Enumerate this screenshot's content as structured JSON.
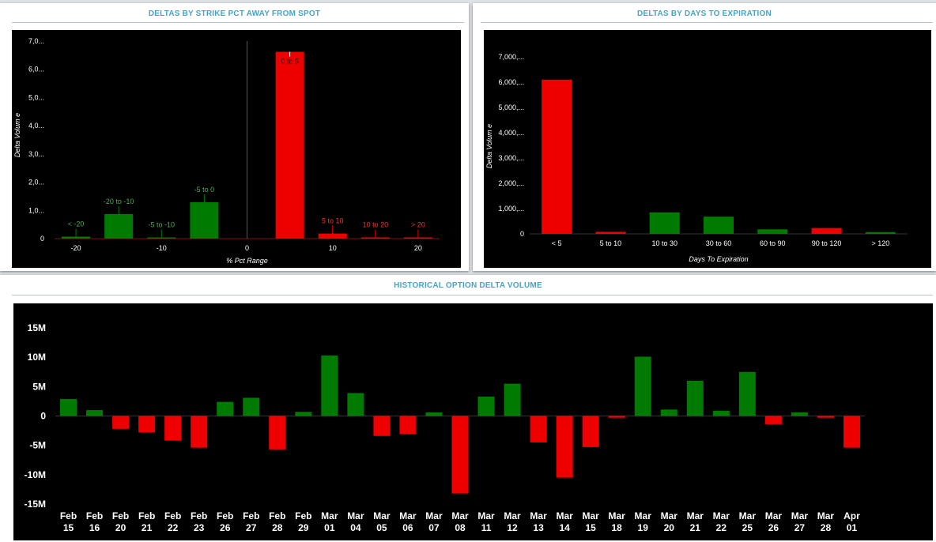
{
  "panels": {
    "strike": {
      "title": "DELTAS BY STRIKE PCT AWAY FROM SPOT"
    },
    "days": {
      "title": "DELTAS BY DAYS TO EXPIRATION"
    },
    "history": {
      "title": "HISTORICAL OPTION DELTA VOLUME"
    }
  },
  "colors": {
    "positive": "#007a00",
    "negative": "#ee0000",
    "label_green": "#4caf50",
    "label_red": "#ff3030",
    "background": "#000000"
  },
  "chart_data": [
    {
      "type": "bar",
      "xlabel": "% Pct Range",
      "ylabel": "Delta Volum e",
      "ylim": [
        0,
        7000
      ],
      "y_ticks": [
        0,
        1000,
        2000,
        3000,
        4000,
        5000,
        6000,
        7000
      ],
      "y_tick_labels": [
        "0",
        "1,0...",
        "2,0...",
        "3,0...",
        "4,0...",
        "5,0...",
        "6,0...",
        "7,0..."
      ],
      "xlim": [
        -22.5,
        22.5
      ],
      "x_ticks": [
        -20,
        -10,
        0,
        10,
        20
      ],
      "x_tick_labels": [
        "-20",
        "-10",
        "0",
        "10",
        "20"
      ],
      "bars": [
        {
          "label": "< -20",
          "x": -20,
          "value": 70,
          "sign": "positive"
        },
        {
          "label": "-20 to -10",
          "x": -15,
          "value": 870,
          "sign": "positive"
        },
        {
          "label": "-5 to -10",
          "x": -10,
          "value": 40,
          "sign": "positive"
        },
        {
          "label": "-5 to 0",
          "x": -5,
          "value": 1290,
          "sign": "positive"
        },
        {
          "label": "0 to 5",
          "x": 5,
          "value": 6620,
          "sign": "negative"
        },
        {
          "label": "5 to 10",
          "x": 10,
          "value": 180,
          "sign": "negative"
        },
        {
          "label": "10 to 20",
          "x": 15,
          "value": 40,
          "sign": "negative"
        },
        {
          "label": "> 20",
          "x": 20,
          "value": 40,
          "sign": "negative"
        }
      ]
    },
    {
      "type": "bar",
      "xlabel": "Days To Expiration",
      "ylabel": "Delta Volum e",
      "ylim": [
        0,
        7000
      ],
      "y_ticks": [
        0,
        1000,
        2000,
        3000,
        4000,
        5000,
        6000,
        7000
      ],
      "y_tick_labels": [
        "0",
        "1,000,...",
        "2,000,...",
        "3,000,...",
        "4,000,...",
        "5,000,...",
        "6,000,...",
        "7,000,..."
      ],
      "categories": [
        "< 5",
        "5 to 10",
        "10 to 30",
        "30 to 60",
        "60 to 90",
        "90 to 120",
        "> 120"
      ],
      "values": [
        6100,
        80,
        850,
        680,
        180,
        230,
        70
      ],
      "signs": [
        "negative",
        "negative",
        "positive",
        "positive",
        "positive",
        "negative",
        "positive"
      ]
    },
    {
      "type": "bar",
      "xlabel": "",
      "ylabel": "",
      "ylim": [
        -15000000,
        15000000
      ],
      "y_ticks": [
        -15000000,
        -10000000,
        -5000000,
        0,
        5000000,
        10000000,
        15000000
      ],
      "y_tick_labels": [
        "-15M",
        "-10M",
        "-5M",
        "0",
        "5M",
        "10M",
        "15M"
      ],
      "categories": [
        [
          "Feb",
          "15"
        ],
        [
          "Feb",
          "16"
        ],
        [
          "Feb",
          "20"
        ],
        [
          "Feb",
          "21"
        ],
        [
          "Feb",
          "22"
        ],
        [
          "Feb",
          "23"
        ],
        [
          "Feb",
          "26"
        ],
        [
          "Feb",
          "27"
        ],
        [
          "Feb",
          "28"
        ],
        [
          "Feb",
          "29"
        ],
        [
          "Mar",
          "01"
        ],
        [
          "Mar",
          "04"
        ],
        [
          "Mar",
          "05"
        ],
        [
          "Mar",
          "06"
        ],
        [
          "Mar",
          "07"
        ],
        [
          "Mar",
          "08"
        ],
        [
          "Mar",
          "11"
        ],
        [
          "Mar",
          "12"
        ],
        [
          "Mar",
          "13"
        ],
        [
          "Mar",
          "14"
        ],
        [
          "Mar",
          "15"
        ],
        [
          "Mar",
          "18"
        ],
        [
          "Mar",
          "19"
        ],
        [
          "Mar",
          "20"
        ],
        [
          "Mar",
          "21"
        ],
        [
          "Mar",
          "22"
        ],
        [
          "Mar",
          "25"
        ],
        [
          "Mar",
          "26"
        ],
        [
          "Mar",
          "27"
        ],
        [
          "Mar",
          "28"
        ],
        [
          "Apr",
          "01"
        ]
      ],
      "values": [
        2900000,
        1000000,
        -2200000,
        -2800000,
        -4200000,
        -5400000,
        2400000,
        3100000,
        -5700000,
        700000,
        10300000,
        3900000,
        -3400000,
        -3100000,
        600000,
        -13200000,
        3300000,
        5500000,
        -4500000,
        -10500000,
        -5300000,
        -300000,
        10100000,
        1100000,
        6000000,
        900000,
        7500000,
        -1400000,
        600000,
        -300000,
        -5400000
      ]
    }
  ]
}
